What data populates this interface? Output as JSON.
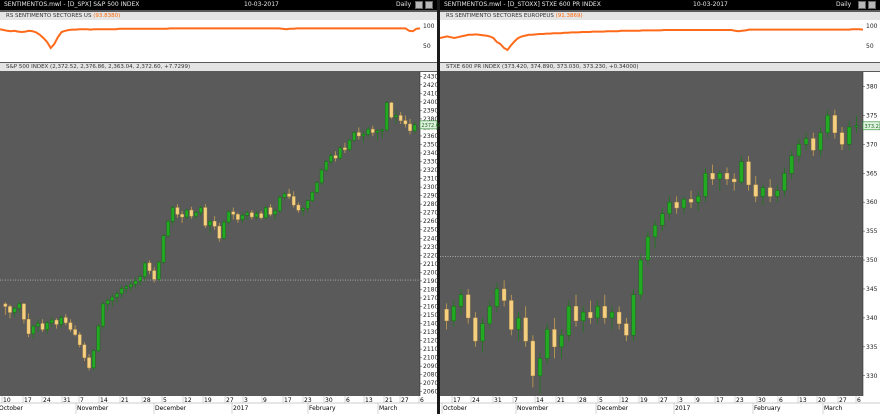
{
  "windows": [
    {
      "title": "SENTIMENTOS.mwl - [D_SPX] S&P 500 INDEX",
      "date": "10-03-2017",
      "period": "Daily",
      "indicator_label": "RS SENTIMENTO SECTORES US",
      "indicator_value": "(93.8380)",
      "price_label": "S&P 500 INDEX (2,372.52, 2,376.86, 2,363.04, 2,372.60, +7.7299)",
      "price_axis_labels": [
        "2430",
        "2420",
        "2410",
        "2400",
        "2390",
        "2380",
        "2370",
        "2360",
        "2350",
        "2340",
        "2330",
        "2320",
        "2310",
        "2300",
        "2290",
        "2280",
        "2270",
        "2260",
        "2250",
        "2240",
        "2230",
        "2220",
        "2210",
        "2200",
        "2190",
        "2180",
        "2170",
        "2160",
        "2150",
        "2140",
        "2130",
        "2120",
        "2110",
        "2100",
        "2090",
        "2080",
        "2070",
        "2060"
      ],
      "last_price_tag": "2372.60",
      "indicator_axis_labels": [
        "100",
        "50"
      ],
      "date_labels": [
        "10",
        "17",
        "24",
        "31",
        "7",
        "14",
        "21",
        "28",
        "5",
        "12",
        "19",
        "27",
        "3",
        "9",
        "17",
        "23",
        "30",
        "6",
        "13",
        "21",
        "27",
        "6"
      ],
      "month_labels": [
        "October",
        "November",
        "December",
        "2017",
        "February",
        "March"
      ]
    },
    {
      "title": "SENTIMENTOS.mwl - [D_STOXX] STXE 600 PR INDEX",
      "date": "10-03-2017",
      "period": "Daily",
      "indicator_label": "RS SENTIMENTO SECTORES EUROPEUS",
      "indicator_value": "(91.3869)",
      "price_label": "STXE 600 PR INDEX (373.420, 374.890, 373.030, 373.230, +0.34000)",
      "price_axis_labels": [
        "380",
        "375",
        "370",
        "365",
        "360",
        "355",
        "350",
        "345",
        "340",
        "335",
        "330"
      ],
      "last_price_tag": "373.23",
      "indicator_axis_labels": [
        "100",
        "50"
      ],
      "date_labels": [
        "17",
        "24",
        "31",
        "7",
        "14",
        "21",
        "28",
        "5",
        "12",
        "19",
        "27",
        "3",
        "9",
        "17",
        "23",
        "30",
        "6",
        "13",
        "20",
        "27",
        "6"
      ],
      "month_labels": [
        "October",
        "November",
        "December",
        "2017",
        "February",
        "March"
      ]
    }
  ],
  "colors": {
    "background": "#5a5a5a",
    "up_candle": "#22aa22",
    "down_candle": "#f5d080",
    "indicator_line": "#ff6a1a",
    "reference_line": "#d8d8d8"
  },
  "chart_data": [
    {
      "type": "candlestick",
      "title": "S&P 500 INDEX",
      "ylim": [
        2055,
        2435
      ],
      "reference_line": 2191,
      "indicator": {
        "name": "RS SENTIMENTO SECTORES US",
        "ylim": [
          20,
          110
        ],
        "values": [
          92,
          90,
          88,
          87,
          88,
          86,
          85,
          86,
          88,
          87,
          84,
          78,
          70,
          60,
          45,
          55,
          72,
          85,
          88,
          90,
          91,
          91,
          92,
          92,
          92,
          91,
          92,
          92,
          92,
          92,
          92,
          92,
          92,
          93,
          93,
          93,
          93,
          93,
          93,
          93,
          93,
          93,
          93,
          93,
          93,
          93,
          93,
          94,
          94,
          94,
          94,
          94,
          94,
          94,
          94,
          94,
          94,
          94,
          94,
          94,
          94,
          94,
          94,
          94,
          94,
          94,
          94,
          94,
          94,
          94,
          94,
          94,
          94,
          94,
          94,
          94,
          94,
          94,
          93,
          92,
          93,
          93,
          94,
          94,
          94,
          94,
          94,
          94,
          94,
          94,
          94,
          94,
          94,
          94,
          94,
          94,
          94,
          94,
          94,
          94,
          94,
          94,
          94,
          94,
          94,
          94,
          94,
          94,
          94,
          94,
          94,
          94,
          94,
          88,
          87,
          93,
          94
        ]
      },
      "ohlc": [
        [
          2163,
          2165,
          2150,
          2160
        ],
        [
          2160,
          2162,
          2146,
          2153
        ],
        [
          2153,
          2160,
          2148,
          2158
        ],
        [
          2158,
          2166,
          2152,
          2163
        ],
        [
          2163,
          2164,
          2140,
          2145
        ],
        [
          2145,
          2152,
          2124,
          2128
        ],
        [
          2128,
          2139,
          2122,
          2137
        ],
        [
          2137,
          2145,
          2130,
          2140
        ],
        [
          2140,
          2145,
          2130,
          2133
        ],
        [
          2133,
          2143,
          2128,
          2141
        ],
        [
          2141,
          2148,
          2136,
          2144
        ],
        [
          2144,
          2146,
          2134,
          2139
        ],
        [
          2139,
          2150,
          2135,
          2147
        ],
        [
          2147,
          2151,
          2138,
          2141
        ],
        [
          2141,
          2145,
          2130,
          2133
        ],
        [
          2133,
          2138,
          2125,
          2127
        ],
        [
          2127,
          2130,
          2112,
          2115
        ],
        [
          2115,
          2118,
          2096,
          2100
        ],
        [
          2100,
          2104,
          2085,
          2088
        ],
        [
          2088,
          2110,
          2085,
          2108
        ],
        [
          2108,
          2140,
          2106,
          2137
        ],
        [
          2137,
          2166,
          2134,
          2163
        ],
        [
          2163,
          2170,
          2155,
          2167
        ],
        [
          2167,
          2175,
          2160,
          2171
        ],
        [
          2171,
          2178,
          2164,
          2175
        ],
        [
          2175,
          2184,
          2170,
          2181
        ],
        [
          2181,
          2186,
          2176,
          2183
        ],
        [
          2183,
          2190,
          2178,
          2186
        ],
        [
          2186,
          2194,
          2182,
          2190
        ],
        [
          2190,
          2198,
          2185,
          2195
        ],
        [
          2195,
          2213,
          2190,
          2211
        ],
        [
          2211,
          2214,
          2198,
          2202
        ],
        [
          2202,
          2206,
          2188,
          2192
        ],
        [
          2192,
          2214,
          2190,
          2212
        ],
        [
          2212,
          2245,
          2210,
          2243
        ],
        [
          2243,
          2262,
          2240,
          2260
        ],
        [
          2260,
          2278,
          2255,
          2276
        ],
        [
          2276,
          2280,
          2264,
          2268
        ],
        [
          2268,
          2272,
          2258,
          2265
        ],
        [
          2265,
          2275,
          2262,
          2273
        ],
        [
          2273,
          2277,
          2263,
          2266
        ],
        [
          2266,
          2272,
          2262,
          2270
        ],
        [
          2270,
          2278,
          2266,
          2276
        ],
        [
          2276,
          2280,
          2252,
          2255
        ],
        [
          2255,
          2262,
          2246,
          2260
        ],
        [
          2260,
          2266,
          2250,
          2254
        ],
        [
          2254,
          2258,
          2236,
          2240
        ],
        [
          2240,
          2262,
          2238,
          2259
        ],
        [
          2259,
          2273,
          2256,
          2271
        ],
        [
          2271,
          2276,
          2262,
          2268
        ],
        [
          2268,
          2270,
          2258,
          2262
        ],
        [
          2262,
          2270,
          2258,
          2267
        ],
        [
          2267,
          2272,
          2262,
          2270
        ],
        [
          2270,
          2273,
          2262,
          2265
        ],
        [
          2265,
          2272,
          2262,
          2269
        ],
        [
          2269,
          2272,
          2262,
          2264
        ],
        [
          2264,
          2278,
          2262,
          2276
        ],
        [
          2276,
          2280,
          2266,
          2268
        ],
        [
          2268,
          2275,
          2262,
          2272
        ],
        [
          2272,
          2290,
          2270,
          2288
        ],
        [
          2288,
          2295,
          2284,
          2292
        ],
        [
          2292,
          2298,
          2286,
          2289
        ],
        [
          2289,
          2295,
          2276,
          2279
        ],
        [
          2279,
          2282,
          2270,
          2273
        ],
        [
          2273,
          2278,
          2266,
          2275
        ],
        [
          2275,
          2286,
          2270,
          2284
        ],
        [
          2284,
          2296,
          2282,
          2294
        ],
        [
          2294,
          2307,
          2292,
          2305
        ],
        [
          2305,
          2322,
          2302,
          2320
        ],
        [
          2320,
          2332,
          2318,
          2330
        ],
        [
          2330,
          2340,
          2326,
          2337
        ],
        [
          2337,
          2342,
          2330,
          2334
        ],
        [
          2334,
          2348,
          2332,
          2346
        ],
        [
          2346,
          2352,
          2340,
          2344
        ],
        [
          2344,
          2357,
          2342,
          2355
        ],
        [
          2355,
          2366,
          2353,
          2364
        ],
        [
          2364,
          2370,
          2356,
          2360
        ],
        [
          2360,
          2366,
          2352,
          2362
        ],
        [
          2362,
          2371,
          2358,
          2368
        ],
        [
          2368,
          2372,
          2360,
          2364
        ],
        [
          2364,
          2368,
          2355,
          2366
        ],
        [
          2366,
          2370,
          2358,
          2367
        ],
        [
          2367,
          2401,
          2365,
          2399
        ],
        [
          2399,
          2400,
          2380,
          2382
        ],
        [
          2382,
          2390,
          2374,
          2384
        ],
        [
          2384,
          2388,
          2374,
          2378
        ],
        [
          2378,
          2384,
          2370,
          2374
        ],
        [
          2374,
          2380,
          2362,
          2366
        ],
        [
          2366,
          2377,
          2363,
          2373
        ]
      ]
    },
    {
      "type": "candlestick",
      "title": "STXE 600 PR INDEX",
      "ylim": [
        326.5,
        382.5
      ],
      "reference_line": 350.6,
      "indicator": {
        "name": "RS SENTIMENTO SECTORES EUROPEUS",
        "ylim": [
          20,
          110
        ],
        "values": [
          70,
          72,
          74,
          72,
          70,
          72,
          74,
          76,
          78,
          78,
          79,
          78,
          77,
          76,
          74,
          70,
          60,
          55,
          45,
          40,
          52,
          62,
          70,
          74,
          76,
          78,
          78,
          79,
          80,
          80,
          81,
          81,
          82,
          82,
          82,
          83,
          83,
          84,
          84,
          84,
          85,
          85,
          85,
          86,
          86,
          86,
          86,
          87,
          87,
          87,
          87,
          88,
          88,
          88,
          88,
          88,
          88,
          89,
          89,
          89,
          89,
          89,
          89,
          90,
          90,
          90,
          90,
          90,
          90,
          90,
          90,
          90,
          90,
          90,
          90,
          90,
          90,
          90,
          90,
          90,
          90,
          90,
          90,
          88,
          87,
          88,
          89,
          91,
          91,
          91,
          91,
          91,
          91,
          91,
          91,
          91,
          91,
          91,
          91,
          91,
          91,
          91,
          91,
          91,
          91,
          91,
          91,
          91,
          91,
          91,
          91,
          91,
          91,
          91,
          91,
          91,
          92,
          92,
          92,
          91
        ]
      },
      "ohlc": [
        [
          341.5,
          342.5,
          338,
          339.5
        ],
        [
          339.5,
          343,
          338.5,
          342
        ],
        [
          342,
          345,
          340.5,
          344
        ],
        [
          344,
          345,
          339,
          340
        ],
        [
          340,
          341,
          335,
          336
        ],
        [
          336,
          340,
          334,
          339
        ],
        [
          339,
          343,
          338,
          342
        ],
        [
          342,
          346,
          341,
          345
        ],
        [
          345,
          346.5,
          342,
          343
        ],
        [
          343,
          344,
          337,
          338
        ],
        [
          338,
          341,
          336,
          340
        ],
        [
          340,
          342,
          335,
          336
        ],
        [
          336,
          337,
          328,
          330
        ],
        [
          330,
          334,
          327,
          333
        ],
        [
          333,
          339,
          332,
          338
        ],
        [
          338,
          340,
          333,
          335
        ],
        [
          335,
          338,
          333,
          337
        ],
        [
          337,
          343,
          336,
          342
        ],
        [
          342,
          344,
          338.5,
          339.5
        ],
        [
          339.5,
          342,
          337.5,
          341
        ],
        [
          341,
          343,
          339,
          340
        ],
        [
          340,
          343,
          339,
          342
        ],
        [
          342,
          344,
          339,
          340
        ],
        [
          340,
          342,
          338,
          341
        ],
        [
          341,
          342,
          338,
          339
        ],
        [
          339,
          340,
          336,
          337
        ],
        [
          337,
          345,
          336,
          344
        ],
        [
          344,
          351,
          343,
          350
        ],
        [
          350,
          355,
          349,
          354
        ],
        [
          354,
          357,
          352,
          356
        ],
        [
          356,
          359,
          355,
          358
        ],
        [
          358,
          361,
          357,
          360
        ],
        [
          360,
          361,
          358,
          359
        ],
        [
          359,
          361,
          358,
          360.5
        ],
        [
          360.5,
          362,
          359,
          360
        ],
        [
          360,
          362,
          358.5,
          361
        ],
        [
          361,
          366,
          360,
          365
        ],
        [
          365,
          366.5,
          363,
          364
        ],
        [
          364,
          365.5,
          362,
          365
        ],
        [
          365,
          366,
          363,
          364
        ],
        [
          364,
          365,
          362,
          363.5
        ],
        [
          363.5,
          368,
          363,
          367
        ],
        [
          367,
          368,
          362,
          363
        ],
        [
          363,
          364.5,
          360,
          361
        ],
        [
          361,
          363,
          359.5,
          362.5
        ],
        [
          362.5,
          364,
          360,
          361
        ],
        [
          361,
          363,
          360,
          362
        ],
        [
          362,
          366,
          361,
          365
        ],
        [
          365,
          369,
          364,
          368
        ],
        [
          368,
          371,
          367,
          370
        ],
        [
          370,
          372,
          369,
          371
        ],
        [
          371,
          372,
          368,
          369
        ],
        [
          369,
          373,
          368,
          372
        ],
        [
          372,
          376,
          371,
          375
        ],
        [
          375,
          376,
          371,
          372
        ],
        [
          372,
          373,
          369,
          370
        ],
        [
          370,
          374,
          369,
          373
        ],
        [
          373,
          375,
          372,
          373.2
        ]
      ]
    }
  ]
}
